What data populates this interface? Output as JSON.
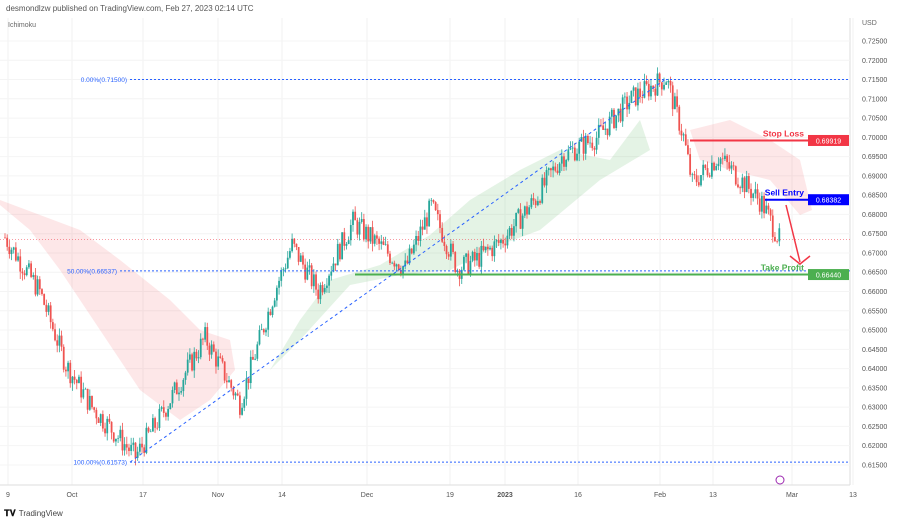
{
  "header": {
    "published": "desmondlzw published on TradingView.com, Feb 27, 2023 02:14 UTC",
    "indicator": "Ichimoku",
    "currency": "USD"
  },
  "footer": {
    "brand": "TradingView",
    "logo": "TV"
  },
  "chart_data": {
    "type": "candlestick",
    "symbol_quote": "USD",
    "ylim": [
      0.613,
      0.728
    ],
    "y_ticks": [
      "0.72500",
      "0.72000",
      "0.71500",
      "0.71000",
      "0.70500",
      "0.70000",
      "0.69500",
      "0.69000",
      "0.68500",
      "0.68000",
      "0.67500",
      "0.67000",
      "0.66500",
      "0.66000",
      "0.65500",
      "0.65000",
      "0.64500",
      "0.64000",
      "0.63500",
      "0.63000",
      "0.62500",
      "0.62000",
      "0.61500"
    ],
    "x_ticks": [
      "9",
      "Oct",
      "17",
      "Nov",
      "14",
      "Dec",
      "19",
      "2023",
      "16",
      "Feb",
      "13",
      "Mar",
      "13"
    ],
    "price_path": [
      [
        0,
        0.674
      ],
      [
        4,
        0.66
      ],
      [
        7,
        0.641
      ],
      [
        10,
        0.63
      ],
      [
        15,
        0.6172
      ],
      [
        18,
        0.628
      ],
      [
        23,
        0.648
      ],
      [
        27,
        0.631
      ],
      [
        31,
        0.66
      ],
      [
        33,
        0.672
      ],
      [
        36,
        0.66
      ],
      [
        40,
        0.678
      ],
      [
        43,
        0.672
      ],
      [
        46,
        0.666
      ],
      [
        49,
        0.682
      ],
      [
        52,
        0.666
      ],
      [
        54,
        0.668
      ],
      [
        57,
        0.673
      ],
      [
        61,
        0.684
      ],
      [
        64,
        0.695
      ],
      [
        68,
        0.7
      ],
      [
        72,
        0.71
      ],
      [
        76,
        0.7155
      ],
      [
        78,
        0.7
      ],
      [
        79,
        0.688
      ],
      [
        82,
        0.695
      ],
      [
        85,
        0.688
      ],
      [
        87,
        0.683
      ],
      [
        89,
        0.6735
      ]
    ],
    "fibonacci": [
      {
        "label": "0.00%(0.71500)",
        "price": 0.715
      },
      {
        "label": "50.00%(0.66537)",
        "price": 0.66537
      },
      {
        "label": "100.00%(0.61573)",
        "price": 0.61573
      }
    ],
    "levels": [
      {
        "name": "Stop Loss",
        "price": 0.69919,
        "label": "0.69919",
        "color": "#f23645"
      },
      {
        "name": "Sell Entry",
        "price": 0.68382,
        "label": "0.68382",
        "color": "#0000ff"
      },
      {
        "name": "Take Profit",
        "price": 0.6644,
        "label": "0.66440",
        "color": "#4caf50"
      }
    ],
    "current_price": 0.6735,
    "colors": {
      "up": "#26a69a",
      "down": "#ef5350"
    }
  }
}
